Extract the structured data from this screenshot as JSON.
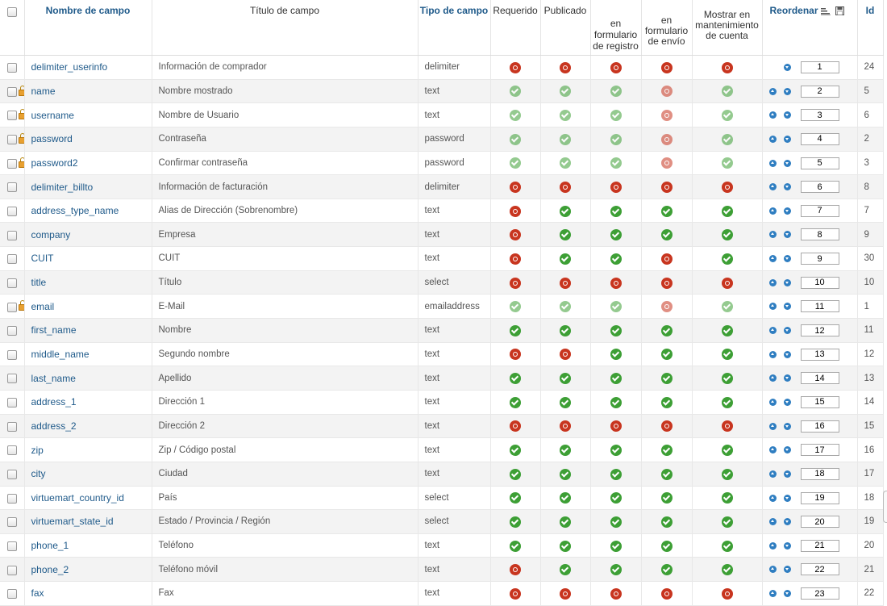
{
  "header": {
    "field_name": "Nombre de campo",
    "field_title": "Título de campo",
    "field_type": "Tipo de campo",
    "required": "Requerido",
    "published": "Publicado",
    "in_registration_form": "en formulario de registro",
    "in_shipping_form": "en formulario de envío",
    "show_in_account_maintenance": "Mostrar en mantenimiento de cuenta",
    "reorder": "Reordenar",
    "id": "Id"
  },
  "rows": [
    {
      "name": "delimiter_userinfo",
      "title": "Información de comprador",
      "type": "delimiter",
      "locked": false,
      "required": "no",
      "published": "no",
      "registration": "no",
      "shipping": "no",
      "account": "no",
      "up": false,
      "down": true,
      "order": "1",
      "id": "24",
      "faded": false
    },
    {
      "name": "name",
      "title": "Nombre mostrado",
      "type": "text",
      "locked": true,
      "required": "ok",
      "published": "ok",
      "registration": "ok",
      "shipping": "no",
      "account": "ok",
      "up": true,
      "down": true,
      "order": "2",
      "id": "5",
      "faded": true
    },
    {
      "name": "username",
      "title": "Nombre de Usuario",
      "type": "text",
      "locked": true,
      "required": "ok",
      "published": "ok",
      "registration": "ok",
      "shipping": "no",
      "account": "ok",
      "up": true,
      "down": true,
      "order": "3",
      "id": "6",
      "faded": true
    },
    {
      "name": "password",
      "title": "Contraseña",
      "type": "password",
      "locked": true,
      "required": "ok",
      "published": "ok",
      "registration": "ok",
      "shipping": "no",
      "account": "ok",
      "up": true,
      "down": true,
      "order": "4",
      "id": "2",
      "faded": true
    },
    {
      "name": "password2",
      "title": "Confirmar contraseña",
      "type": "password",
      "locked": true,
      "required": "ok",
      "published": "ok",
      "registration": "ok",
      "shipping": "no",
      "account": "ok",
      "up": true,
      "down": true,
      "order": "5",
      "id": "3",
      "faded": true
    },
    {
      "name": "delimiter_billto",
      "title": "Información de facturación",
      "type": "delimiter",
      "locked": false,
      "required": "no",
      "published": "no",
      "registration": "no",
      "shipping": "no",
      "account": "no",
      "up": true,
      "down": true,
      "order": "6",
      "id": "8",
      "faded": false
    },
    {
      "name": "address_type_name",
      "title": "Alias de Dirección (Sobrenombre)",
      "type": "text",
      "locked": false,
      "required": "no",
      "published": "ok",
      "registration": "ok",
      "shipping": "ok",
      "account": "ok",
      "up": true,
      "down": true,
      "order": "7",
      "id": "7",
      "faded": false
    },
    {
      "name": "company",
      "title": "Empresa",
      "type": "text",
      "locked": false,
      "required": "no",
      "published": "ok",
      "registration": "ok",
      "shipping": "ok",
      "account": "ok",
      "up": true,
      "down": true,
      "order": "8",
      "id": "9",
      "faded": false
    },
    {
      "name": "CUIT",
      "title": "CUIT",
      "type": "text",
      "locked": false,
      "required": "no",
      "published": "ok",
      "registration": "ok",
      "shipping": "no",
      "account": "ok",
      "up": true,
      "down": true,
      "order": "9",
      "id": "30",
      "faded": false
    },
    {
      "name": "title",
      "title": "Título",
      "type": "select",
      "locked": false,
      "required": "no",
      "published": "no",
      "registration": "no",
      "shipping": "no",
      "account": "no",
      "up": true,
      "down": true,
      "order": "10",
      "id": "10",
      "faded": false
    },
    {
      "name": "email",
      "title": "E-Mail",
      "type": "emailaddress",
      "locked": true,
      "required": "ok",
      "published": "ok",
      "registration": "ok",
      "shipping": "no",
      "account": "ok",
      "up": true,
      "down": true,
      "order": "11",
      "id": "1",
      "faded": true
    },
    {
      "name": "first_name",
      "title": "Nombre",
      "type": "text",
      "locked": false,
      "required": "ok",
      "published": "ok",
      "registration": "ok",
      "shipping": "ok",
      "account": "ok",
      "up": true,
      "down": true,
      "order": "12",
      "id": "11",
      "faded": false
    },
    {
      "name": "middle_name",
      "title": "Segundo nombre",
      "type": "text",
      "locked": false,
      "required": "no",
      "published": "no",
      "registration": "ok",
      "shipping": "ok",
      "account": "ok",
      "up": true,
      "down": true,
      "order": "13",
      "id": "12",
      "faded": false
    },
    {
      "name": "last_name",
      "title": "Apellido",
      "type": "text",
      "locked": false,
      "required": "ok",
      "published": "ok",
      "registration": "ok",
      "shipping": "ok",
      "account": "ok",
      "up": true,
      "down": true,
      "order": "14",
      "id": "13",
      "faded": false
    },
    {
      "name": "address_1",
      "title": "Dirección 1",
      "type": "text",
      "locked": false,
      "required": "ok",
      "published": "ok",
      "registration": "ok",
      "shipping": "ok",
      "account": "ok",
      "up": true,
      "down": true,
      "order": "15",
      "id": "14",
      "faded": false
    },
    {
      "name": "address_2",
      "title": "Dirección 2",
      "type": "text",
      "locked": false,
      "required": "no",
      "published": "no",
      "registration": "no",
      "shipping": "no",
      "account": "no",
      "up": true,
      "down": true,
      "order": "16",
      "id": "15",
      "faded": false
    },
    {
      "name": "zip",
      "title": "Zip / Código postal",
      "type": "text",
      "locked": false,
      "required": "ok",
      "published": "ok",
      "registration": "ok",
      "shipping": "ok",
      "account": "ok",
      "up": true,
      "down": true,
      "order": "17",
      "id": "16",
      "faded": false
    },
    {
      "name": "city",
      "title": "Ciudad",
      "type": "text",
      "locked": false,
      "required": "ok",
      "published": "ok",
      "registration": "ok",
      "shipping": "ok",
      "account": "ok",
      "up": true,
      "down": true,
      "order": "18",
      "id": "17",
      "faded": false
    },
    {
      "name": "virtuemart_country_id",
      "title": "País",
      "type": "select",
      "locked": false,
      "required": "ok",
      "published": "ok",
      "registration": "ok",
      "shipping": "ok",
      "account": "ok",
      "up": true,
      "down": true,
      "order": "19",
      "id": "18",
      "faded": false
    },
    {
      "name": "virtuemart_state_id",
      "title": "Estado / Provincia / Región",
      "type": "select",
      "locked": false,
      "required": "ok",
      "published": "ok",
      "registration": "ok",
      "shipping": "ok",
      "account": "ok",
      "up": true,
      "down": true,
      "order": "20",
      "id": "19",
      "faded": false
    },
    {
      "name": "phone_1",
      "title": "Teléfono",
      "type": "text",
      "locked": false,
      "required": "ok",
      "published": "ok",
      "registration": "ok",
      "shipping": "ok",
      "account": "ok",
      "up": true,
      "down": true,
      "order": "21",
      "id": "20",
      "faded": false
    },
    {
      "name": "phone_2",
      "title": "Teléfono móvil",
      "type": "text",
      "locked": false,
      "required": "no",
      "published": "ok",
      "registration": "ok",
      "shipping": "ok",
      "account": "ok",
      "up": true,
      "down": true,
      "order": "22",
      "id": "21",
      "faded": false
    },
    {
      "name": "fax",
      "title": "Fax",
      "type": "text",
      "locked": false,
      "required": "no",
      "published": "no",
      "registration": "no",
      "shipping": "no",
      "account": "no",
      "up": true,
      "down": true,
      "order": "23",
      "id": "22",
      "faded": false
    }
  ],
  "colors": {
    "ok": "#3d9f35",
    "no": "#c8351f",
    "link": "#1f5a8a",
    "arrow": "#2f7ec1"
  }
}
